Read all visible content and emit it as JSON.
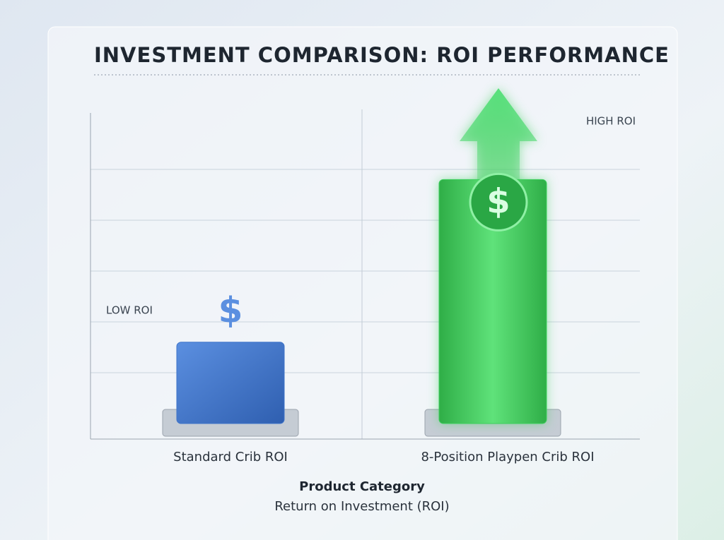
{
  "chart_data": {
    "type": "bar",
    "title": "INVESTMENT COMPARISON: ROI PERFORMANCE",
    "categories": [
      "Standard Crib ROI",
      "8-Position Playpen Crib ROI"
    ],
    "values": [
      1.6,
      4.8
    ],
    "colors": [
      "#3f74c9",
      "#3ccf5c"
    ],
    "annotations": [
      "LOW ROI",
      "HIGH ROI"
    ],
    "icon_labels": [
      "$",
      "$"
    ],
    "xlabel": "Product Category",
    "ylabel": "Return on Investment (ROI)",
    "ylim": [
      0,
      6
    ],
    "yticks": [
      1,
      2,
      3,
      4,
      5
    ],
    "grid": true
  }
}
